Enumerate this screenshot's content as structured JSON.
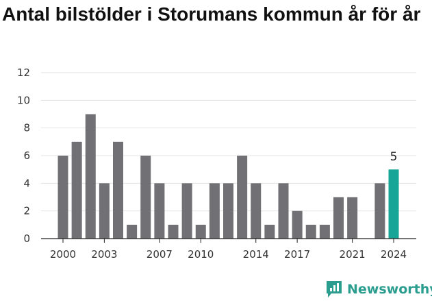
{
  "title": "Antal bilstölder i Storumans kommun år för år",
  "brand": {
    "name": "Newsworthy",
    "color": "#2a9d8f",
    "icon": "newsworthy-logo-icon"
  },
  "colors": {
    "bar": "#707075",
    "highlight": "#16a596",
    "grid": "#e3e3e3",
    "axis": "#222222"
  },
  "chart_data": {
    "type": "bar",
    "x": [
      2000,
      2001,
      2002,
      2003,
      2004,
      2005,
      2006,
      2007,
      2008,
      2009,
      2010,
      2011,
      2012,
      2013,
      2014,
      2015,
      2016,
      2017,
      2018,
      2019,
      2020,
      2021,
      2022,
      2023,
      2024
    ],
    "values": [
      6,
      7,
      9,
      4,
      7,
      1,
      6,
      4,
      1,
      4,
      1,
      4,
      4,
      6,
      4,
      1,
      4,
      2,
      1,
      1,
      3,
      3,
      null,
      4,
      5
    ],
    "highlight_index": 24,
    "highlight_label": "5",
    "x_tick_labels": [
      "2000",
      "2003",
      "2007",
      "2010",
      "2014",
      "2017",
      "2021",
      "2024"
    ],
    "y_ticks": [
      0,
      2,
      4,
      6,
      8,
      10,
      12
    ],
    "ylim": [
      0,
      12
    ],
    "grid": true,
    "legend": "none",
    "xlabel": "",
    "ylabel": ""
  }
}
